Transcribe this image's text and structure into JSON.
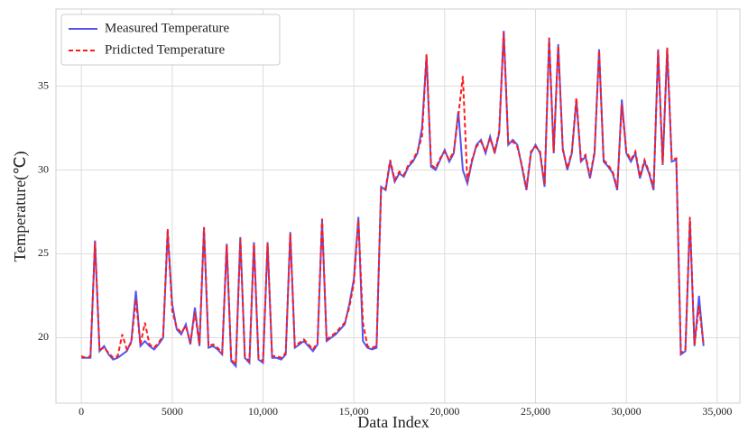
{
  "chart_data": {
    "type": "line",
    "x_label": "Data Index",
    "y_label": "Temperature(℃)",
    "x": [
      0,
      250,
      500,
      750,
      1000,
      1250,
      1500,
      1750,
      2000,
      2250,
      2500,
      2750,
      3000,
      3250,
      3500,
      3750,
      4000,
      4250,
      4500,
      4750,
      5000,
      5250,
      5500,
      5750,
      6000,
      6250,
      6500,
      6750,
      7000,
      7250,
      7500,
      7750,
      8000,
      8250,
      8500,
      8750,
      9000,
      9250,
      9500,
      9750,
      10000,
      10250,
      10500,
      10750,
      11000,
      11250,
      11500,
      11750,
      12000,
      12250,
      12500,
      12750,
      13000,
      13250,
      13500,
      13750,
      14000,
      14250,
      14500,
      14750,
      15000,
      15250,
      15500,
      15750,
      16000,
      16250,
      16500,
      16750,
      17000,
      17250,
      17500,
      17750,
      18000,
      18250,
      18500,
      18750,
      19000,
      19250,
      19500,
      19750,
      20000,
      20250,
      20500,
      20750,
      21000,
      21250,
      21500,
      21750,
      22000,
      22250,
      22500,
      22750,
      23000,
      23250,
      23500,
      23750,
      24000,
      24250,
      24500,
      24750,
      25000,
      25250,
      25500,
      25750,
      26000,
      26250,
      26500,
      26750,
      27000,
      27250,
      27500,
      27750,
      28000,
      28250,
      28500,
      28750,
      29000,
      29250,
      29500,
      29750,
      30000,
      30250,
      30500,
      30750,
      31000,
      31250,
      31500,
      31750,
      32000,
      32250,
      32500,
      32750,
      33000,
      33250,
      33500,
      33750,
      34000,
      34250
    ],
    "series": [
      {
        "name": "Measured Temperature",
        "color": "#5555ee",
        "dashed": false,
        "values": [
          18.8,
          18.8,
          18.8,
          25.8,
          19.2,
          19.5,
          19.0,
          18.7,
          18.8,
          19.0,
          19.2,
          19.8,
          22.8,
          19.5,
          19.8,
          19.5,
          19.3,
          19.6,
          20.0,
          26.3,
          22.0,
          20.5,
          20.2,
          20.8,
          19.6,
          21.8,
          19.5,
          26.5,
          19.4,
          19.5,
          19.3,
          19.0,
          25.6,
          18.6,
          18.3,
          26.0,
          18.8,
          18.5,
          25.7,
          18.7,
          18.5,
          25.7,
          18.8,
          18.8,
          18.7,
          19.0,
          26.3,
          19.4,
          19.6,
          19.8,
          19.5,
          19.2,
          19.6,
          27.0,
          19.8,
          20.0,
          20.2,
          20.5,
          20.8,
          22.0,
          23.5,
          27.2,
          19.8,
          19.4,
          19.3,
          19.4,
          29.0,
          28.8,
          30.5,
          29.3,
          29.8,
          29.6,
          30.2,
          30.5,
          31.0,
          32.5,
          36.8,
          30.2,
          30.0,
          30.6,
          31.2,
          30.5,
          31.0,
          33.5,
          30.0,
          29.2,
          30.5,
          31.5,
          31.8,
          31.0,
          32.0,
          31.0,
          32.2,
          38.3,
          31.5,
          31.8,
          31.5,
          30.2,
          28.8,
          31.0,
          31.5,
          31.0,
          29.0,
          37.8,
          31.0,
          37.5,
          31.3,
          30.0,
          31.0,
          34.2,
          30.5,
          30.8,
          29.5,
          31.0,
          37.2,
          30.5,
          30.2,
          29.8,
          28.8,
          34.2,
          31.0,
          30.5,
          31.0,
          29.5,
          30.5,
          29.8,
          28.8,
          37.2,
          30.3,
          37.2,
          30.5,
          30.6,
          19.0,
          19.2,
          27.0,
          19.5,
          22.5,
          19.5
        ]
      },
      {
        "name": "Pridicted Temperature",
        "color": "#ff1a1a",
        "dashed": true,
        "values": [
          18.9,
          18.8,
          18.9,
          25.7,
          19.3,
          19.4,
          19.1,
          18.8,
          18.9,
          20.2,
          19.3,
          19.7,
          22.3,
          19.6,
          20.9,
          19.6,
          19.4,
          19.7,
          20.1,
          26.5,
          21.6,
          20.6,
          20.3,
          20.7,
          19.7,
          21.5,
          19.6,
          26.6,
          19.5,
          19.6,
          19.4,
          19.1,
          25.5,
          18.7,
          18.4,
          25.9,
          18.9,
          18.6,
          25.6,
          18.8,
          18.6,
          25.6,
          18.9,
          18.9,
          18.8,
          19.1,
          26.2,
          19.5,
          19.7,
          19.9,
          19.6,
          19.3,
          19.7,
          27.1,
          19.9,
          20.1,
          20.3,
          20.6,
          20.9,
          21.8,
          23.3,
          27.0,
          20.9,
          19.5,
          19.4,
          19.5,
          28.9,
          28.9,
          30.6,
          29.4,
          29.9,
          29.7,
          30.3,
          30.6,
          31.1,
          32.0,
          36.9,
          30.3,
          30.1,
          30.7,
          31.1,
          30.6,
          31.1,
          33.2,
          35.6,
          29.3,
          30.6,
          31.4,
          31.7,
          31.1,
          31.9,
          31.1,
          32.3,
          38.2,
          31.6,
          31.7,
          31.4,
          30.3,
          28.9,
          31.1,
          31.4,
          31.1,
          29.1,
          37.9,
          31.1,
          37.4,
          31.2,
          30.1,
          31.1,
          34.3,
          30.6,
          30.9,
          29.6,
          31.1,
          37.1,
          30.6,
          30.3,
          29.9,
          28.9,
          33.9,
          31.1,
          30.6,
          31.1,
          29.6,
          30.6,
          29.9,
          28.9,
          37.1,
          30.4,
          37.3,
          30.6,
          30.7,
          19.1,
          19.3,
          27.2,
          19.6,
          21.9,
          19.6
        ]
      }
    ],
    "xlim": [
      -1400,
      36250
    ],
    "ylim": [
      16.1,
      39.6
    ],
    "xticks": [
      0,
      5000,
      {
        "value": 10000,
        "label": "10,000"
      },
      {
        "value": 15000,
        "label": "15,000"
      },
      {
        "value": 20000,
        "label": "20,000"
      },
      {
        "value": 25000,
        "label": "25,000"
      },
      {
        "value": 30000,
        "label": "30,000"
      },
      {
        "value": 35000,
        "label": "35,000"
      }
    ],
    "yticks": [
      20,
      25,
      30,
      35
    ],
    "grid": true,
    "legend": "upper-left"
  }
}
